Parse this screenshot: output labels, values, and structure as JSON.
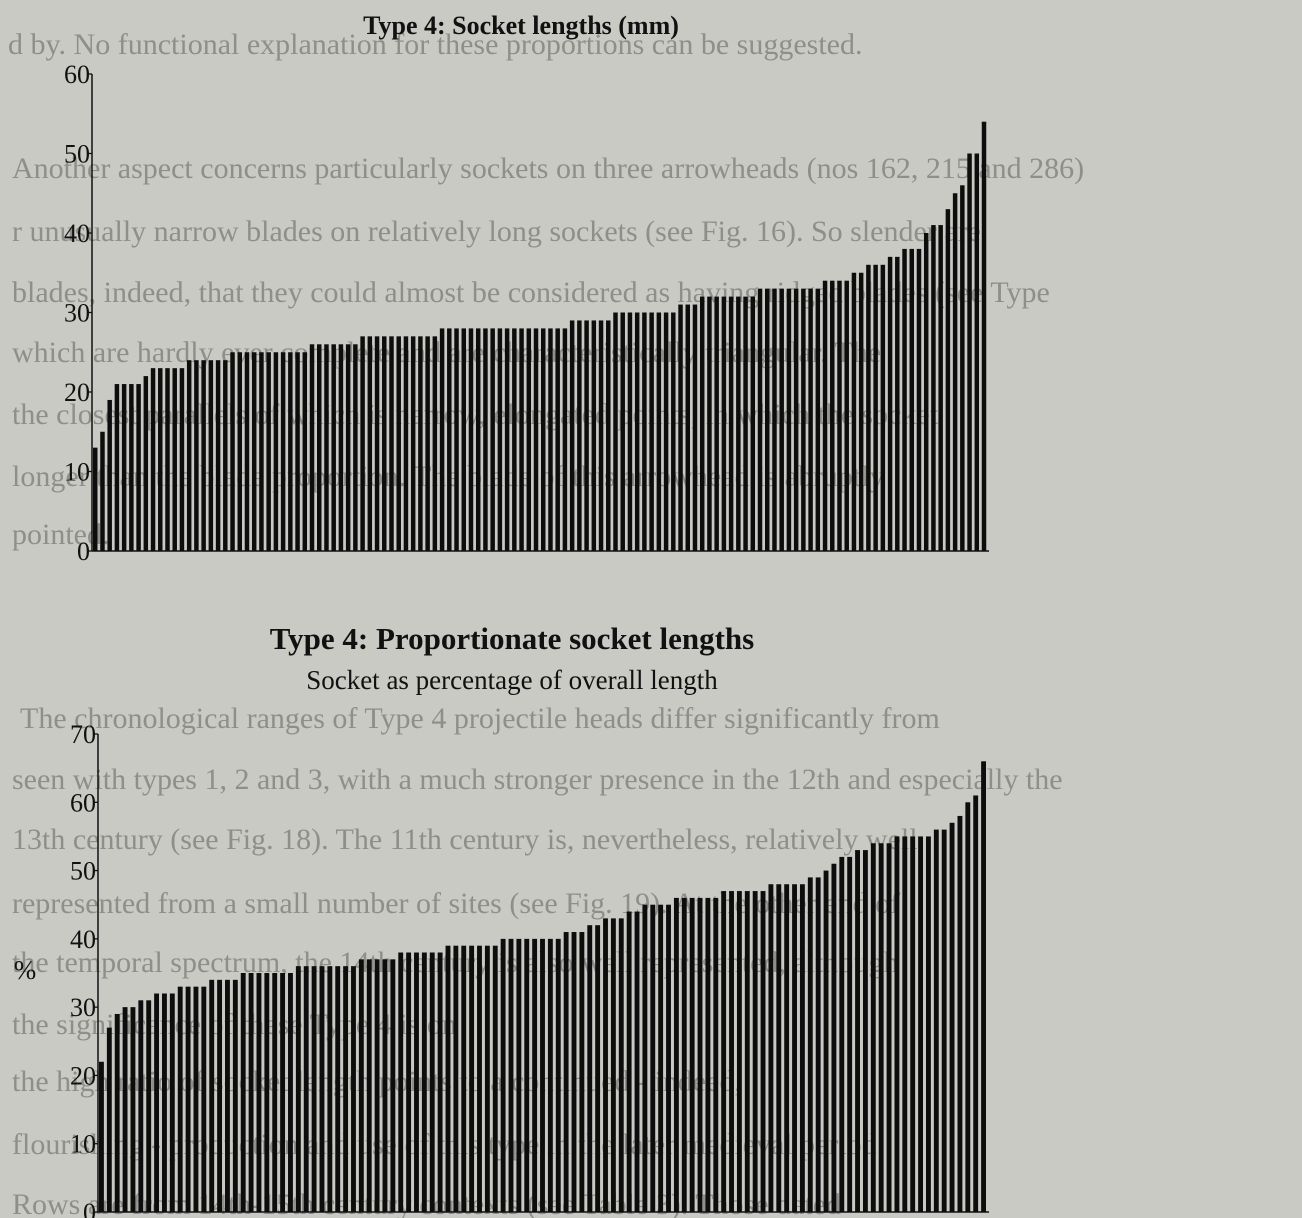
{
  "chart_data": [
    {
      "type": "bar",
      "title": "Type 4: Socket lengths (mm)",
      "subtitle": "",
      "xlabel": "",
      "ylabel": "",
      "ylim": [
        0,
        60
      ],
      "yticks": [
        0,
        10,
        20,
        30,
        40,
        50,
        60
      ],
      "grid": false,
      "values": [
        13,
        15,
        19,
        21,
        21,
        21,
        21,
        22,
        23,
        23,
        23,
        23,
        23,
        24,
        24,
        24,
        24,
        24,
        24,
        25,
        25,
        25,
        25,
        25,
        25,
        25,
        25,
        25,
        25,
        25,
        26,
        26,
        26,
        26,
        26,
        26,
        26,
        27,
        27,
        27,
        27,
        27,
        27,
        27,
        27,
        27,
        27,
        27,
        28,
        28,
        28,
        28,
        28,
        28,
        28,
        28,
        28,
        28,
        28,
        28,
        28,
        28,
        28,
        28,
        28,
        28,
        29,
        29,
        29,
        29,
        29,
        29,
        30,
        30,
        30,
        30,
        30,
        30,
        30,
        30,
        30,
        31,
        31,
        31,
        32,
        32,
        32,
        32,
        32,
        32,
        32,
        32,
        33,
        33,
        33,
        33,
        33,
        33,
        33,
        33,
        33,
        34,
        34,
        34,
        34,
        35,
        35,
        36,
        36,
        36,
        37,
        37,
        38,
        38,
        38,
        40,
        41,
        41,
        43,
        45,
        46,
        50,
        50,
        54
      ]
    },
    {
      "type": "bar",
      "title": "Type 4: Proportionate socket lengths",
      "subtitle": "Socket as percentage of overall length",
      "xlabel": "",
      "ylabel": "%",
      "ylim": [
        0,
        70
      ],
      "yticks": [
        0,
        10,
        20,
        30,
        40,
        50,
        60,
        70
      ],
      "grid": false,
      "values": [
        22,
        27,
        29,
        30,
        30,
        31,
        31,
        32,
        32,
        32,
        33,
        33,
        33,
        33,
        34,
        34,
        34,
        34,
        35,
        35,
        35,
        35,
        35,
        35,
        35,
        36,
        36,
        36,
        36,
        36,
        36,
        36,
        36,
        37,
        37,
        37,
        37,
        37,
        38,
        38,
        38,
        38,
        38,
        38,
        39,
        39,
        39,
        39,
        39,
        39,
        39,
        40,
        40,
        40,
        40,
        40,
        40,
        40,
        40,
        41,
        41,
        41,
        42,
        42,
        43,
        43,
        43,
        44,
        44,
        45,
        45,
        45,
        45,
        46,
        46,
        46,
        46,
        46,
        46,
        47,
        47,
        47,
        47,
        47,
        47,
        48,
        48,
        48,
        48,
        48,
        49,
        49,
        50,
        51,
        52,
        52,
        53,
        53,
        54,
        54,
        54,
        55,
        55,
        55,
        55,
        55,
        56,
        56,
        57,
        58,
        60,
        61,
        66
      ]
    }
  ],
  "background_text": [
    "d by. No functional explanation for these proportions can be suggested.",
    "Another aspect concerns particularly sockets on three arrowheads (nos 162, 215 and 286)",
    "r unusually narrow blades on relatively long sockets (see Fig. 16). So slender are",
    "blades, indeed, that they could almost be considered as having ridged blades (see Type",
    "which are hardly ever complete and are characteristically triangular. The",
    "the closest parallels of which is narrow, elongated points, in which the socket",
    "longer than the blade proportion. The blade of this arrowhead is abruptly",
    "pointed.",
    "The chronological ranges of Type 4 projectile heads differ significantly from",
    "seen with types 1, 2 and 3, with a much stronger presence in the 12th and especially the",
    "13th century (see Fig. 18). The 11th century is, nevertheless, relatively well",
    "represented from a small number of sites (see Fig. 19). At the other end of",
    "the temporal spectrum, the 14th century is also well represented, although",
    "the significance of these Type 4 is on",
    "the high ratio of socket length points to a continued - indeed,",
    "flourishing - production and use of this type in the later medieval period.",
    "Rows are from 14th-15th century contexts (see Table 3). Those dated"
  ],
  "colors": {
    "background": "#c9cac4",
    "bars": "#0d0d0d",
    "background_text": "#8e8f8a"
  }
}
